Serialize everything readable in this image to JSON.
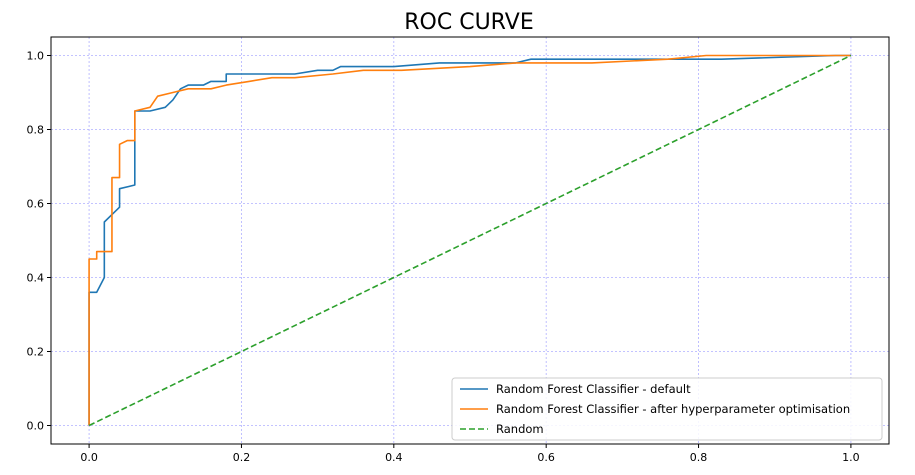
{
  "chart_data": {
    "type": "line",
    "title": "ROC CURVE",
    "xlabel": "",
    "ylabel": "",
    "xlim": [
      -0.05,
      1.05
    ],
    "ylim": [
      -0.05,
      1.05
    ],
    "x_ticks": [
      0.0,
      0.2,
      0.4,
      0.6,
      0.8,
      1.0
    ],
    "y_ticks": [
      0.0,
      0.2,
      0.4,
      0.6,
      0.8,
      1.0
    ],
    "x_tick_labels": [
      "0.0",
      "0.2",
      "0.4",
      "0.6",
      "0.8",
      "1.0"
    ],
    "y_tick_labels": [
      "0.0",
      "0.2",
      "0.4",
      "0.6",
      "0.8",
      "1.0"
    ],
    "grid": true,
    "grid_color": "#b0b0ff",
    "legend_position": "lower-right",
    "series": [
      {
        "name": "Random Forest Classifier - default",
        "color": "#1f77b4",
        "style": "solid",
        "x": [
          0.0,
          0.0,
          0.01,
          0.02,
          0.02,
          0.03,
          0.04,
          0.04,
          0.06,
          0.06,
          0.08,
          0.1,
          0.11,
          0.12,
          0.13,
          0.15,
          0.16,
          0.18,
          0.18,
          0.2,
          0.27,
          0.3,
          0.32,
          0.33,
          0.4,
          0.46,
          0.53,
          0.56,
          0.58,
          0.7,
          0.83,
          0.98,
          1.0
        ],
        "y": [
          0.0,
          0.36,
          0.36,
          0.4,
          0.55,
          0.57,
          0.59,
          0.64,
          0.65,
          0.85,
          0.85,
          0.86,
          0.88,
          0.91,
          0.92,
          0.92,
          0.93,
          0.93,
          0.95,
          0.95,
          0.95,
          0.96,
          0.96,
          0.97,
          0.97,
          0.98,
          0.98,
          0.98,
          0.99,
          0.99,
          0.99,
          1.0,
          1.0
        ]
      },
      {
        "name": "Random Forest Classifier - after hyperparameter optimisation",
        "color": "#ff7f0e",
        "style": "solid",
        "x": [
          0.0,
          0.0,
          0.01,
          0.01,
          0.03,
          0.03,
          0.04,
          0.04,
          0.05,
          0.06,
          0.06,
          0.08,
          0.09,
          0.11,
          0.13,
          0.16,
          0.18,
          0.21,
          0.24,
          0.27,
          0.32,
          0.36,
          0.41,
          0.5,
          0.56,
          0.66,
          0.76,
          0.81,
          0.86,
          1.0
        ],
        "y": [
          0.0,
          0.45,
          0.45,
          0.47,
          0.47,
          0.67,
          0.67,
          0.76,
          0.77,
          0.77,
          0.85,
          0.86,
          0.89,
          0.9,
          0.91,
          0.91,
          0.92,
          0.93,
          0.94,
          0.94,
          0.95,
          0.96,
          0.96,
          0.97,
          0.98,
          0.98,
          0.99,
          1.0,
          1.0,
          1.0
        ]
      },
      {
        "name": "Random",
        "color": "#2ca02c",
        "style": "dashed",
        "x": [
          0.0,
          1.0
        ],
        "y": [
          0.0,
          1.0
        ]
      }
    ]
  }
}
